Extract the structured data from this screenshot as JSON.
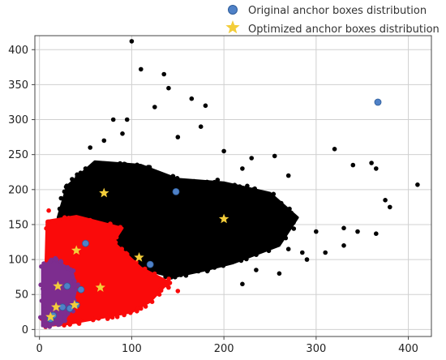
{
  "chart_data": {
    "type": "scatter",
    "title": "",
    "xlabel": "",
    "ylabel": "",
    "xlim": [
      -5,
      425
    ],
    "ylim": [
      -10,
      420
    ],
    "xticks": [
      0,
      100,
      200,
      300,
      400
    ],
    "yticks": [
      0,
      50,
      100,
      150,
      200,
      250,
      300,
      350,
      400
    ],
    "grid": true,
    "legend_position": "top-right",
    "legend": [
      {
        "label": "Original anchor boxes distribution",
        "marker": "circle",
        "color": "#4f81c7"
      },
      {
        "label": "Optimized anchor boxes distribution",
        "marker": "star",
        "color": "#f3cd3a"
      }
    ],
    "clusters": [
      {
        "name": "black",
        "color": "#000000",
        "region": [
          [
            15,
            18
          ],
          [
            25,
            80
          ],
          [
            20,
            160
          ],
          [
            30,
            205
          ],
          [
            60,
            240
          ],
          [
            110,
            235
          ],
          [
            150,
            215
          ],
          [
            200,
            210
          ],
          [
            250,
            195
          ],
          [
            280,
            160
          ],
          [
            260,
            120
          ],
          [
            210,
            95
          ],
          [
            180,
            85
          ],
          [
            145,
            75
          ],
          [
            115,
            85
          ],
          [
            100,
            80
          ],
          [
            70,
            70
          ],
          [
            40,
            60
          ],
          [
            20,
            40
          ]
        ],
        "outliers": [
          [
            100,
            412
          ],
          [
            110,
            372
          ],
          [
            135,
            365
          ],
          [
            125,
            318
          ],
          [
            180,
            320
          ],
          [
            175,
            290
          ],
          [
            200,
            255
          ],
          [
            230,
            245
          ],
          [
            255,
            248
          ],
          [
            270,
            220
          ],
          [
            320,
            258
          ],
          [
            340,
            235
          ],
          [
            360,
            238
          ],
          [
            365,
            230
          ],
          [
            375,
            185
          ],
          [
            380,
            175
          ],
          [
            410,
            207
          ],
          [
            365,
            137
          ],
          [
            300,
            140
          ],
          [
            330,
            145
          ],
          [
            250,
            180
          ],
          [
            220,
            230
          ],
          [
            260,
            150
          ],
          [
            240,
            150
          ],
          [
            95,
            300
          ],
          [
            165,
            330
          ],
          [
            80,
            300
          ],
          [
            90,
            280
          ],
          [
            140,
            345
          ],
          [
            50,
            230
          ],
          [
            55,
            260
          ],
          [
            70,
            270
          ],
          [
            150,
            275
          ],
          [
            285,
            110
          ],
          [
            270,
            115
          ],
          [
            290,
            100
          ],
          [
            310,
            110
          ],
          [
            345,
            140
          ],
          [
            330,
            120
          ],
          [
            260,
            80
          ],
          [
            235,
            85
          ],
          [
            220,
            65
          ]
        ]
      },
      {
        "name": "red",
        "color": "#fa0a0a",
        "region": [
          [
            5,
            5
          ],
          [
            8,
            155
          ],
          [
            40,
            162
          ],
          [
            90,
            145
          ],
          [
            80,
            125
          ],
          [
            110,
            88
          ],
          [
            140,
            68
          ],
          [
            120,
            40
          ],
          [
            100,
            25
          ],
          [
            80,
            20
          ],
          [
            60,
            15
          ],
          [
            30,
            8
          ]
        ],
        "outliers": [
          [
            130,
            50
          ],
          [
            120,
            42
          ],
          [
            110,
            30
          ],
          [
            140,
            60
          ],
          [
            150,
            55
          ],
          [
            10,
            170
          ]
        ]
      },
      {
        "name": "purple",
        "color": "#7d2d8f",
        "region": [
          [
            3,
            5
          ],
          [
            3,
            90
          ],
          [
            15,
            100
          ],
          [
            35,
            85
          ],
          [
            40,
            60
          ],
          [
            35,
            30
          ],
          [
            25,
            10
          ],
          [
            10,
            5
          ]
        ],
        "outliers": []
      }
    ],
    "series": [
      {
        "name": "Original anchor boxes distribution",
        "color": "#4f81c7",
        "marker": "circle",
        "points": [
          [
            367,
            325
          ],
          [
            148,
            197
          ],
          [
            50,
            123
          ],
          [
            120,
            93
          ],
          [
            30,
            62
          ],
          [
            45,
            57
          ],
          [
            25,
            32
          ],
          [
            40,
            35
          ],
          [
            33,
            30
          ],
          [
            15,
            20
          ],
          [
            12,
            15
          ]
        ]
      },
      {
        "name": "Optimized anchor boxes distribution",
        "color": "#f3cd3a",
        "marker": "star",
        "points": [
          [
            70,
            195
          ],
          [
            200,
            158
          ],
          [
            108,
            103
          ],
          [
            40,
            113
          ],
          [
            20,
            62
          ],
          [
            66,
            60
          ],
          [
            38,
            35
          ],
          [
            18,
            32
          ],
          [
            12,
            18
          ]
        ]
      }
    ]
  }
}
